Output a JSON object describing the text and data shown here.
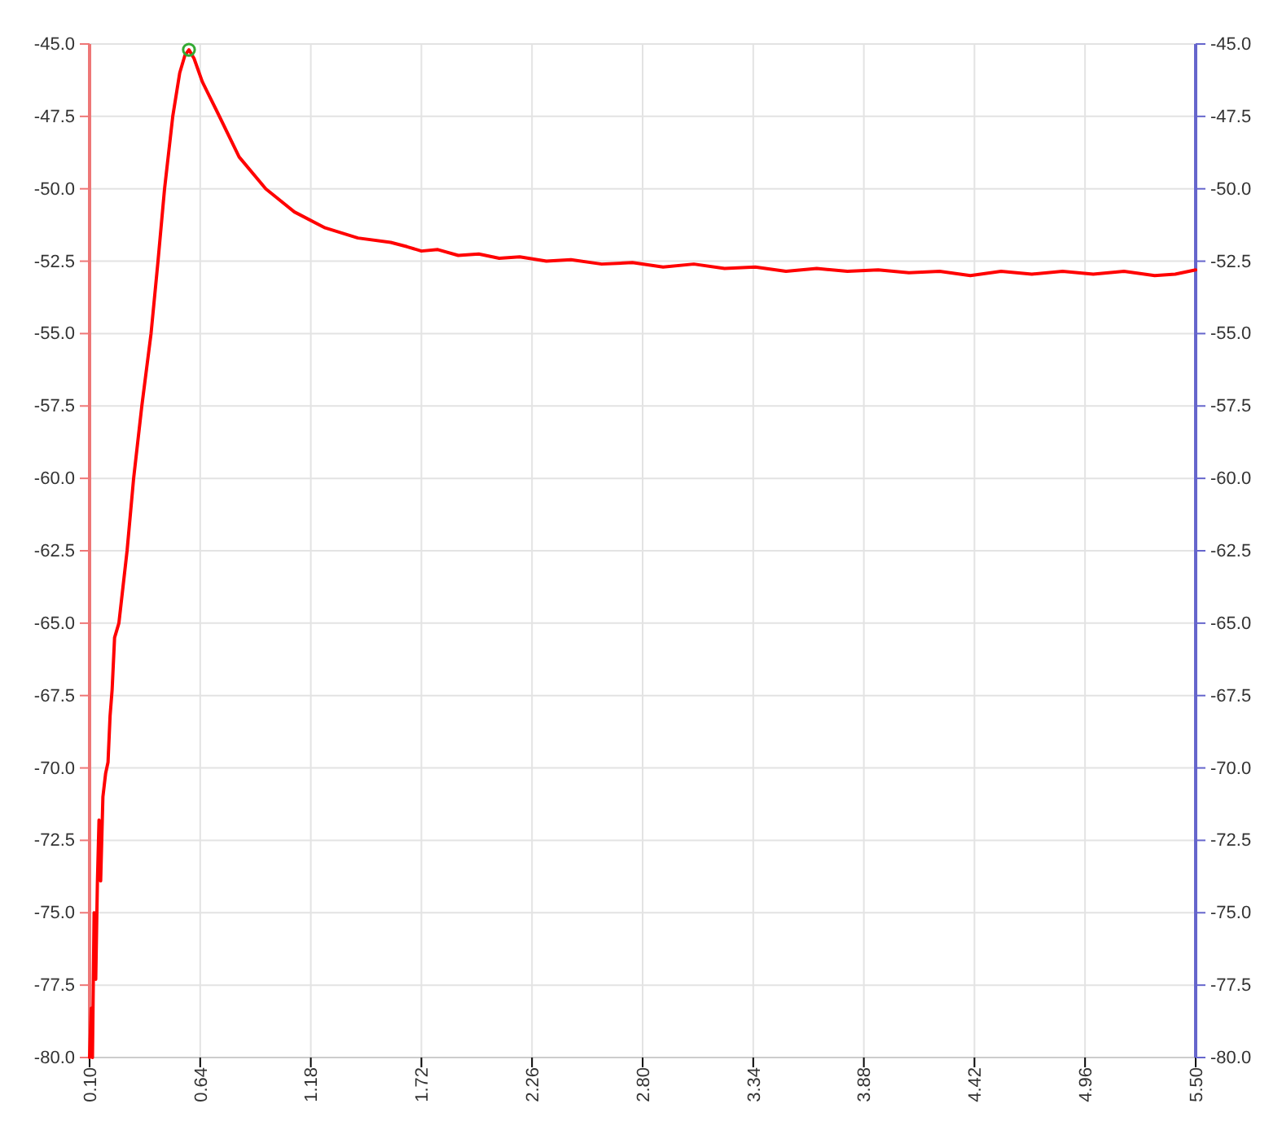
{
  "chart_data": {
    "type": "line",
    "xlim": [
      0.1,
      5.5
    ],
    "xticks": [
      {
        "value": 0.1,
        "label": "0.10"
      },
      {
        "value": 0.64,
        "label": "0.64"
      },
      {
        "value": 1.18,
        "label": "1.18"
      },
      {
        "value": 1.72,
        "label": "1.72"
      },
      {
        "value": 2.26,
        "label": "2.26"
      },
      {
        "value": 2.8,
        "label": "2.80"
      },
      {
        "value": 3.34,
        "label": "3.34"
      },
      {
        "value": 3.88,
        "label": "3.88"
      },
      {
        "value": 4.42,
        "label": "4.42"
      },
      {
        "value": 4.96,
        "label": "4.96"
      },
      {
        "value": 5.5,
        "label": "5.50"
      }
    ],
    "ylim": [
      -80,
      -45
    ],
    "yticks": [
      {
        "value": -80,
        "label": "-80.0"
      },
      {
        "value": -77.5,
        "label": "-77.5"
      },
      {
        "value": -75,
        "label": "-75.0"
      },
      {
        "value": -72.5,
        "label": "-72.5"
      },
      {
        "value": -70,
        "label": "-70.0"
      },
      {
        "value": -67.5,
        "label": "-67.5"
      },
      {
        "value": -65,
        "label": "-65.0"
      },
      {
        "value": -62.5,
        "label": "-62.5"
      },
      {
        "value": -60,
        "label": "-60.0"
      },
      {
        "value": -57.5,
        "label": "-57.5"
      },
      {
        "value": -55,
        "label": "-55.0"
      },
      {
        "value": -52.5,
        "label": "-52.5"
      },
      {
        "value": -50,
        "label": "-50.0"
      },
      {
        "value": -47.5,
        "label": "-47.5"
      },
      {
        "value": -45,
        "label": "-45.0"
      }
    ],
    "y2lim": [
      -80,
      -45
    ],
    "y2ticks": [
      {
        "value": -80,
        "label": "-80.0"
      },
      {
        "value": -77.5,
        "label": "-77.5"
      },
      {
        "value": -75,
        "label": "-75.0"
      },
      {
        "value": -72.5,
        "label": "-72.5"
      },
      {
        "value": -70,
        "label": "-70.0"
      },
      {
        "value": -67.5,
        "label": "-67.5"
      },
      {
        "value": -65,
        "label": "-65.0"
      },
      {
        "value": -62.5,
        "label": "-62.5"
      },
      {
        "value": -60,
        "label": "-60.0"
      },
      {
        "value": -57.5,
        "label": "-57.5"
      },
      {
        "value": -55,
        "label": "-55.0"
      },
      {
        "value": -52.5,
        "label": "-52.5"
      },
      {
        "value": -50,
        "label": "-50.0"
      },
      {
        "value": -47.5,
        "label": "-47.5"
      },
      {
        "value": -45,
        "label": "-45.0"
      }
    ],
    "grid": true,
    "marker": "none",
    "line_style": "solid",
    "series": [
      {
        "color": "#ff0000",
        "x": [
          0.1,
          0.108,
          0.114,
          0.122,
          0.13,
          0.138,
          0.146,
          0.154,
          0.165,
          0.178,
          0.19,
          0.2,
          0.21,
          0.222,
          0.243,
          0.283,
          0.315,
          0.355,
          0.4,
          0.434,
          0.466,
          0.506,
          0.54,
          0.565,
          0.585,
          0.61,
          0.65,
          0.72,
          0.83,
          0.96,
          1.1,
          1.25,
          1.41,
          1.57,
          1.65,
          1.72,
          1.8,
          1.9,
          2.0,
          2.1,
          2.2,
          2.33,
          2.45,
          2.6,
          2.75,
          2.9,
          3.05,
          3.2,
          3.35,
          3.5,
          3.65,
          3.8,
          3.95,
          4.1,
          4.25,
          4.4,
          4.55,
          4.7,
          4.85,
          5.0,
          5.15,
          5.3,
          5.4,
          5.5
        ],
        "values": [
          -80,
          -78.3,
          -80,
          -75.0,
          -77.3,
          -74.0,
          -71.8,
          -73.9,
          -71.0,
          -70.2,
          -69.8,
          -68.2,
          -67.3,
          -65.5,
          -65.0,
          -62.5,
          -60.0,
          -57.5,
          -55.0,
          -52.5,
          -50.0,
          -47.5,
          -46.0,
          -45.4,
          -45.2,
          -45.5,
          -46.3,
          -47.3,
          -48.9,
          -50.0,
          -50.8,
          -51.35,
          -51.7,
          -51.85,
          -52.0,
          -52.15,
          -52.1,
          -52.3,
          -52.25,
          -52.4,
          -52.35,
          -52.5,
          -52.45,
          -52.6,
          -52.55,
          -52.7,
          -52.6,
          -52.75,
          -52.7,
          -52.85,
          -52.75,
          -52.85,
          -52.8,
          -52.9,
          -52.85,
          -53.0,
          -52.85,
          -52.95,
          -52.85,
          -52.95,
          -52.85,
          -53.0,
          -52.95,
          -52.8
        ]
      },
      {
        "type": "scatter",
        "color": "#33aa33",
        "marker": "circle",
        "x": [
          0.585
        ],
        "values": [
          -45.2
        ]
      }
    ]
  }
}
